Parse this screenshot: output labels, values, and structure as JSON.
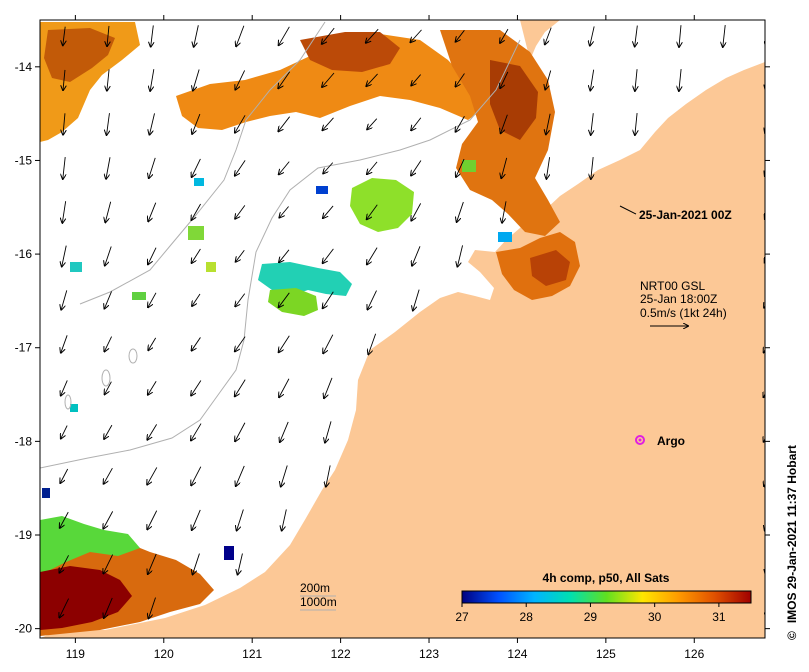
{
  "map": {
    "lon_range": [
      118.6,
      126.8
    ],
    "lat_range": [
      -20.1,
      -13.5
    ],
    "lon_ticks": [
      119,
      120,
      121,
      122,
      123,
      124,
      125,
      126
    ],
    "lat_ticks": [
      -14,
      -15,
      -16,
      -17,
      -18,
      -19,
      -20
    ],
    "lon_tick_labels": [
      "119",
      "120",
      "121",
      "122",
      "123",
      "124",
      "125",
      "126"
    ],
    "lat_tick_labels": [
      "-14",
      "-15",
      "-16",
      "-17",
      "-18",
      "-19",
      "-20"
    ],
    "land_color": "#fcc896",
    "sea_color": "#ffffff"
  },
  "annotations": {
    "date_label": "25-Jan-2021 00Z",
    "current_source": "NRT00 GSL",
    "current_time": "25-Jan 18:00Z",
    "current_scale": "0.5m/s (1kt 24h)",
    "argo_label": "Argo",
    "argo_color": "#e020e0",
    "contour_200": "200m",
    "contour_1000": "1000m"
  },
  "colorbar": {
    "title": "4h comp, p50, All Sats",
    "min": 27,
    "max": 31.5,
    "tick_values": [
      27,
      28,
      29,
      30,
      31
    ],
    "tick_labels": [
      "27",
      "28",
      "29",
      "30",
      "31"
    ],
    "palette": [
      "#00007f",
      "#0050ff",
      "#00b4ff",
      "#00e0b0",
      "#60e020",
      "#ffe600",
      "#ff9a00",
      "#e05000",
      "#a00000"
    ]
  },
  "credit": "IMOS 29-Jan-2021 11:37 Hobart",
  "credit_symbol": "©"
}
